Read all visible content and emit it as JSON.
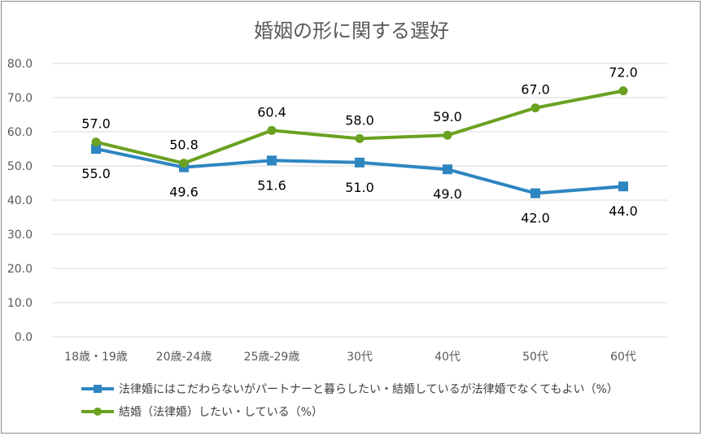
{
  "chart_data": {
    "type": "line",
    "title": "婚姻の形に関する選好",
    "categories": [
      "18歳・19歳",
      "20歳-24歳",
      "25歳-29歳",
      "30代",
      "40代",
      "50代",
      "60代"
    ],
    "ylim": [
      0,
      80
    ],
    "yticks": [
      "0.0",
      "10.0",
      "20.0",
      "30.0",
      "40.0",
      "50.0",
      "60.0",
      "70.0",
      "80.0"
    ],
    "grid": true,
    "legend_position": "bottom",
    "series": [
      {
        "name": "法律婚にはこだわらないがパートナーと暮らしたい・結婚しているが法律婚でなくてもよい（%）",
        "values": [
          55.0,
          49.6,
          51.6,
          51.0,
          49.0,
          42.0,
          44.0
        ],
        "labels": [
          "55.0",
          "49.6",
          "51.6",
          "51.0",
          "49.0",
          "42.0",
          "44.0"
        ],
        "color": "#2e86c1",
        "marker": "square"
      },
      {
        "name": "結婚（法律婚）したい・している（%）",
        "values": [
          57.0,
          50.8,
          60.4,
          58.0,
          59.0,
          67.0,
          72.0
        ],
        "labels": [
          "57.0",
          "50.8",
          "60.4",
          "58.0",
          "59.0",
          "67.0",
          "72.0"
        ],
        "color": "#6aa121",
        "marker": "circle"
      }
    ]
  }
}
